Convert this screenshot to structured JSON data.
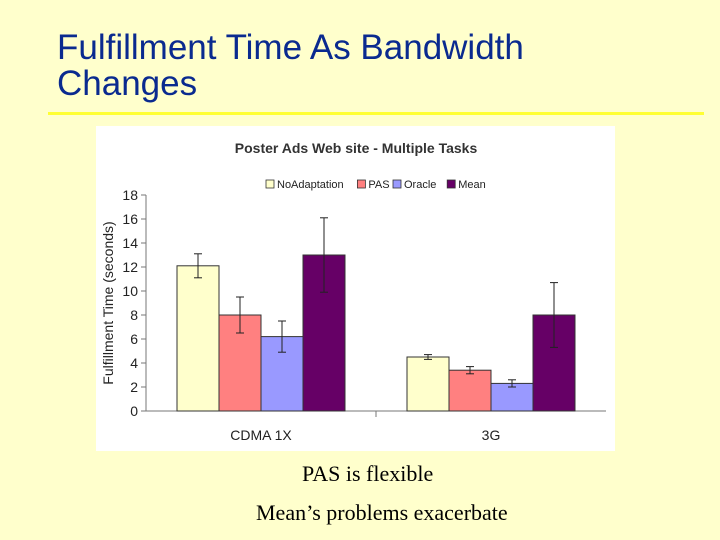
{
  "slide": {
    "title_line1": "Fulfillment Time As Bandwidth",
    "title_line2": "Changes",
    "caption1": "PAS is flexible",
    "caption2": "Mean’s problems exacerbate"
  },
  "colors": {
    "background": "#ffffcc",
    "title": "#0a2a8f",
    "rule": "#ffff33"
  },
  "chart_data": {
    "type": "bar",
    "title": "Poster Ads Web site - Multiple Tasks",
    "xlabel": "",
    "ylabel": "Fulfillment Time (seconds)",
    "ylim": [
      0,
      18
    ],
    "yticks": [
      0,
      2,
      4,
      6,
      8,
      10,
      12,
      14,
      16,
      18
    ],
    "categories": [
      "CDMA 1X",
      "3G"
    ],
    "legend_position": "top",
    "series": [
      {
        "name": "NoAdaptation",
        "color": "#ffffcc",
        "values": [
          12.1,
          4.5
        ],
        "error": [
          1.0,
          0.2
        ]
      },
      {
        "name": "PAS",
        "color": "#ff8080",
        "values": [
          8.0,
          3.4
        ],
        "error": [
          1.5,
          0.3
        ]
      },
      {
        "name": "Oracle",
        "color": "#9999ff",
        "values": [
          6.2,
          2.3
        ],
        "error": [
          1.3,
          0.3
        ]
      },
      {
        "name": "Mean",
        "color": "#660066",
        "values": [
          13.0,
          8.0
        ],
        "error": [
          3.1,
          2.7
        ]
      }
    ]
  }
}
